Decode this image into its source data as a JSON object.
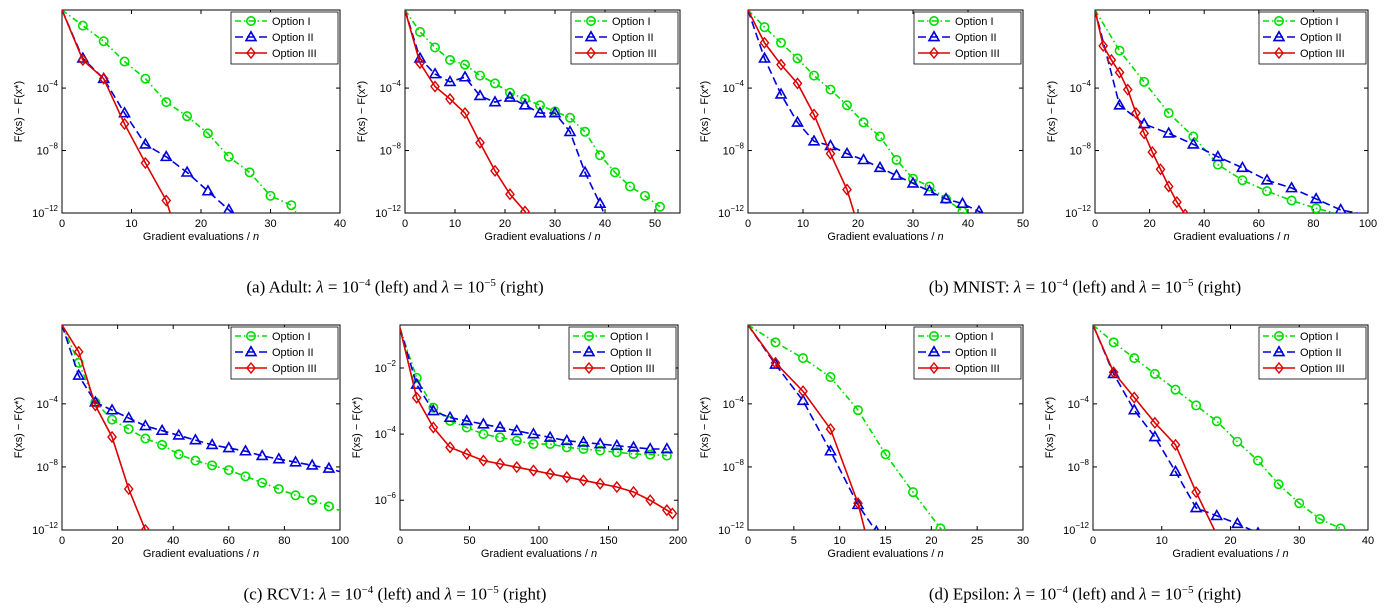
{
  "colors": {
    "option1": "#00dd00",
    "option2": "#0000dd",
    "option3": "#dd0000",
    "axis": "#000000"
  },
  "captions": [
    {
      "label": "(a) Adult:",
      "lam": "λ",
      "eq": " = 10",
      "exp1": "−4",
      "mid": " (left) and ",
      "exp2": "−5",
      "end": " (right)"
    },
    {
      "label": "(b) MNIST:",
      "lam": "λ",
      "eq": " = 10",
      "exp1": "−4",
      "mid": " (left) and ",
      "exp2": "−5",
      "end": " (right)"
    },
    {
      "label": "(c) RCV1:",
      "lam": "λ",
      "eq": " = 10",
      "exp1": "−4",
      "mid": " (left) and ",
      "exp2": "−5",
      "end": " (right)"
    },
    {
      "label": "(d) Epsilon:",
      "lam": "λ",
      "eq": " = 10",
      "exp1": "−4",
      "mid": " (left) and ",
      "exp2": "−5",
      "end": " (right)"
    }
  ],
  "chart_data": [
    {
      "type": "line",
      "xlabel": "Gradient evaluations / n",
      "ylabel": "F(x^s) − F(x^*)",
      "yscale": "log",
      "xlim": [
        0,
        40
      ],
      "xticks": [
        0,
        10,
        20,
        30,
        40
      ],
      "ylim_exp": [
        -12,
        1
      ],
      "ytick_exp": [
        -4,
        -8,
        -12
      ],
      "legend": [
        "Option I",
        "Option II",
        "Option III"
      ],
      "series": [
        {
          "name": "Option I",
          "x": [
            0,
            3,
            6,
            9,
            12,
            15,
            18,
            21,
            24,
            27,
            30,
            33,
            34
          ],
          "y_exp": [
            1,
            0,
            -1,
            -2.3,
            -3.4,
            -4.9,
            -5.8,
            -6.9,
            -8.4,
            -9.4,
            -10.9,
            -11.5,
            -12.2
          ]
        },
        {
          "name": "Option II",
          "x": [
            0,
            3,
            6,
            9,
            12,
            15,
            18,
            21,
            24,
            26
          ],
          "y_exp": [
            1,
            -2.1,
            -3.4,
            -5.6,
            -7.6,
            -8.4,
            -9.4,
            -10.6,
            -11.8,
            -12.6
          ]
        },
        {
          "name": "Option III",
          "x": [
            0,
            3,
            6,
            9,
            12,
            15,
            16
          ],
          "y_exp": [
            1,
            -2.2,
            -3.4,
            -6.3,
            -8.8,
            -11.2,
            -12.6
          ]
        }
      ]
    },
    {
      "type": "line",
      "xlabel": "Gradient evaluations / n",
      "ylabel": "F(x^s) − F(x^*)",
      "yscale": "log",
      "xlim": [
        0,
        55
      ],
      "xticks": [
        0,
        10,
        20,
        30,
        40,
        50
      ],
      "ylim_exp": [
        -12,
        1
      ],
      "ytick_exp": [
        -4,
        -8,
        -12
      ],
      "legend": [
        "Option I",
        "Option II",
        "Option III"
      ],
      "series": [
        {
          "name": "Option I",
          "x": [
            0,
            3,
            6,
            9,
            12,
            15,
            18,
            21,
            24,
            27,
            30,
            33,
            36,
            39,
            42,
            45,
            48,
            51
          ],
          "y_exp": [
            1,
            -0.4,
            -1.4,
            -2.2,
            -2.5,
            -3.2,
            -3.7,
            -4.3,
            -4.7,
            -5.1,
            -5.5,
            -5.9,
            -6.8,
            -8.3,
            -9.4,
            -10.3,
            -10.9,
            -11.6
          ]
        },
        {
          "name": "Option II",
          "x": [
            0,
            3,
            6,
            9,
            12,
            15,
            18,
            21,
            24,
            27,
            30,
            33,
            36,
            39,
            40
          ],
          "y_exp": [
            1,
            -2.1,
            -3.1,
            -3.6,
            -3.3,
            -4.5,
            -4.9,
            -4.6,
            -5.1,
            -5.6,
            -5.6,
            -6.8,
            -9.4,
            -11.4,
            -12.2
          ]
        },
        {
          "name": "Option III",
          "x": [
            0,
            3,
            6,
            9,
            12,
            15,
            18,
            21,
            24,
            25
          ],
          "y_exp": [
            1,
            -2.4,
            -3.9,
            -4.7,
            -5.6,
            -7.5,
            -9.3,
            -10.8,
            -11.9,
            -12.5
          ]
        }
      ]
    },
    {
      "type": "line",
      "xlabel": "Gradient evaluations / n",
      "ylabel": "F(x^s) − F(x^*)",
      "yscale": "log",
      "xlim": [
        0,
        50
      ],
      "xticks": [
        0,
        10,
        20,
        30,
        40,
        50
      ],
      "ylim_exp": [
        -12,
        1
      ],
      "ytick_exp": [
        -4,
        -8,
        -12
      ],
      "legend": [
        "Option I",
        "Option II",
        "Option III"
      ],
      "series": [
        {
          "name": "Option I",
          "x": [
            0,
            3,
            6,
            9,
            12,
            15,
            18,
            21,
            24,
            27,
            30,
            33,
            36,
            39,
            41
          ],
          "y_exp": [
            1,
            -0.1,
            -1.1,
            -2.1,
            -3.2,
            -4.1,
            -5.1,
            -6.2,
            -7.1,
            -8.6,
            -9.8,
            -10.3,
            -11.1,
            -11.9,
            -12.5
          ]
        },
        {
          "name": "Option II",
          "x": [
            0,
            3,
            6,
            9,
            12,
            15,
            18,
            21,
            24,
            27,
            30,
            33,
            36,
            39,
            42,
            45,
            48
          ],
          "y_exp": [
            1,
            -2.1,
            -4.4,
            -6.2,
            -7.4,
            -7.7,
            -8.2,
            -8.6,
            -9.1,
            -9.6,
            -10.1,
            -10.6,
            -11.1,
            -11.4,
            -11.9,
            -12.4,
            -12.8
          ]
        },
        {
          "name": "Option III",
          "x": [
            0,
            3,
            6,
            9,
            12,
            15,
            18,
            20
          ],
          "y_exp": [
            1,
            -1.1,
            -2.5,
            -3.7,
            -5.7,
            -8.2,
            -10.5,
            -12.8
          ]
        }
      ]
    },
    {
      "type": "line",
      "xlabel": "Gradient evaluations / n",
      "ylabel": "F(x^s) − F(x^*)",
      "yscale": "log",
      "xlim": [
        0,
        100
      ],
      "xticks": [
        0,
        20,
        40,
        60,
        80,
        100
      ],
      "ylim_exp": [
        -12,
        1
      ],
      "ytick_exp": [
        -4,
        -8,
        -12
      ],
      "legend": [
        "Option I",
        "Option II",
        "Option III"
      ],
      "series": [
        {
          "name": "Option I",
          "x": [
            0,
            9,
            18,
            27,
            36,
            45,
            54,
            63,
            72,
            81,
            90
          ],
          "y_exp": [
            1,
            -1.6,
            -3.6,
            -5.6,
            -7.1,
            -8.9,
            -9.9,
            -10.6,
            -11.2,
            -11.7,
            -12.1
          ]
        },
        {
          "name": "Option II",
          "x": [
            0,
            9,
            18,
            27,
            36,
            45,
            54,
            63,
            72,
            81,
            90,
            99
          ],
          "y_exp": [
            1,
            -5.1,
            -6.3,
            -6.9,
            -7.6,
            -8.4,
            -9.1,
            -9.9,
            -10.4,
            -11.1,
            -11.8,
            -12.1
          ]
        },
        {
          "name": "Option III",
          "x": [
            0,
            3,
            6,
            9,
            12,
            15,
            18,
            21,
            24,
            27,
            30,
            33,
            36
          ],
          "y_exp": [
            1,
            -1.3,
            -2.2,
            -3.0,
            -4.1,
            -5.6,
            -6.9,
            -8.1,
            -9.2,
            -10.3,
            -11.3,
            -12.1,
            -12.9
          ]
        }
      ]
    },
    {
      "type": "line",
      "xlabel": "Gradient evaluations / n",
      "ylabel": "F(x^s) − F(x^*)",
      "yscale": "log",
      "xlim": [
        0,
        100
      ],
      "xticks": [
        0,
        20,
        40,
        60,
        80,
        100
      ],
      "ylim_exp": [
        -12,
        1
      ],
      "ytick_exp": [
        -4,
        -8,
        -12
      ],
      "legend": [
        "Option I",
        "Option II",
        "Option III"
      ],
      "series": [
        {
          "name": "Option I",
          "x": [
            0,
            6,
            12,
            18,
            24,
            30,
            36,
            42,
            48,
            54,
            60,
            66,
            72,
            78,
            84,
            90,
            96,
            102
          ],
          "y_exp": [
            1,
            -1.4,
            -3.9,
            -5.0,
            -5.6,
            -6.2,
            -6.6,
            -7.2,
            -7.6,
            -7.9,
            -8.2,
            -8.6,
            -9.0,
            -9.4,
            -9.8,
            -10.1,
            -10.5,
            -10.9
          ]
        },
        {
          "name": "Option II",
          "x": [
            0,
            6,
            12,
            18,
            24,
            30,
            36,
            42,
            48,
            54,
            60,
            66,
            72,
            78,
            84,
            90,
            96,
            102
          ],
          "y_exp": [
            1,
            -2.2,
            -3.9,
            -4.4,
            -4.9,
            -5.4,
            -5.7,
            -6.0,
            -6.3,
            -6.6,
            -6.8,
            -7.0,
            -7.3,
            -7.5,
            -7.7,
            -7.9,
            -8.1,
            -8.4
          ]
        },
        {
          "name": "Option III",
          "x": [
            0,
            6,
            12,
            18,
            24,
            30,
            32
          ],
          "y_exp": [
            1,
            -0.7,
            -4.1,
            -6.1,
            -9.4,
            -12.0,
            -12.8
          ]
        }
      ]
    },
    {
      "type": "line",
      "xlabel": "Gradient evaluations / n",
      "ylabel": "F(x^s) − F(x^*)",
      "yscale": "log",
      "xlim": [
        0,
        200
      ],
      "xticks": [
        0,
        50,
        100,
        150,
        200
      ],
      "ylim_exp": [
        -6.9,
        -0.7
      ],
      "ytick_exp": [
        -2,
        -4,
        -6
      ],
      "legend": [
        "Option I",
        "Option II",
        "Option III"
      ],
      "series": [
        {
          "name": "Option I",
          "x": [
            0,
            12,
            24,
            36,
            48,
            60,
            72,
            84,
            96,
            108,
            120,
            132,
            144,
            156,
            168,
            180,
            192
          ],
          "y_exp": [
            -0.8,
            -2.3,
            -3.2,
            -3.6,
            -3.8,
            -4.0,
            -4.1,
            -4.2,
            -4.3,
            -4.3,
            -4.4,
            -4.45,
            -4.5,
            -4.55,
            -4.6,
            -4.62,
            -4.65
          ]
        },
        {
          "name": "Option II",
          "x": [
            0,
            12,
            24,
            36,
            48,
            60,
            72,
            84,
            96,
            108,
            120,
            132,
            144,
            156,
            168,
            180,
            192
          ],
          "y_exp": [
            -0.8,
            -2.5,
            -3.3,
            -3.5,
            -3.6,
            -3.7,
            -3.8,
            -3.9,
            -4.0,
            -4.1,
            -4.2,
            -4.25,
            -4.3,
            -4.35,
            -4.4,
            -4.45,
            -4.45
          ]
        },
        {
          "name": "Option III",
          "x": [
            0,
            12,
            24,
            36,
            48,
            60,
            72,
            84,
            96,
            108,
            120,
            132,
            144,
            156,
            168,
            180,
            192,
            196
          ],
          "y_exp": [
            -0.8,
            -2.9,
            -3.8,
            -4.4,
            -4.6,
            -4.8,
            -4.9,
            -5.0,
            -5.1,
            -5.2,
            -5.3,
            -5.4,
            -5.5,
            -5.6,
            -5.75,
            -6.0,
            -6.3,
            -6.4
          ]
        }
      ]
    },
    {
      "type": "line",
      "xlabel": "Gradient evaluations / n",
      "ylabel": "F(x^s) − F(x^*)",
      "yscale": "log",
      "xlim": [
        0,
        30
      ],
      "xticks": [
        0,
        5,
        10,
        15,
        20,
        25,
        30
      ],
      "ylim_exp": [
        -12,
        1
      ],
      "ytick_exp": [
        -4,
        -8,
        -12
      ],
      "legend": [
        "Option I",
        "Option II",
        "Option III"
      ],
      "series": [
        {
          "name": "Option I",
          "x": [
            0,
            3,
            6,
            9,
            12,
            15,
            18,
            21,
            22
          ],
          "y_exp": [
            1,
            -0.1,
            -1.1,
            -2.3,
            -4.4,
            -7.2,
            -9.6,
            -11.9,
            -12.6
          ]
        },
        {
          "name": "Option II",
          "x": [
            0,
            3,
            6,
            9,
            12,
            14,
            15
          ],
          "y_exp": [
            1,
            -1.5,
            -3.8,
            -7.0,
            -10.4,
            -12.1,
            -12.6
          ]
        },
        {
          "name": "Option III",
          "x": [
            0,
            3,
            6,
            9,
            12,
            13
          ],
          "y_exp": [
            1,
            -1.4,
            -3.2,
            -5.6,
            -10.3,
            -12.6
          ]
        }
      ]
    },
    {
      "type": "line",
      "xlabel": "Gradient evaluations / n",
      "ylabel": "F(x^s) − F(x^*)",
      "yscale": "log",
      "xlim": [
        0,
        40
      ],
      "xticks": [
        0,
        10,
        20,
        30,
        40
      ],
      "ylim_exp": [
        -12,
        1
      ],
      "ytick_exp": [
        -4,
        -8,
        -12
      ],
      "legend": [
        "Option I",
        "Option II",
        "Option III"
      ],
      "series": [
        {
          "name": "Option I",
          "x": [
            0,
            3,
            6,
            9,
            12,
            15,
            18,
            21,
            24,
            27,
            30,
            33,
            36
          ],
          "y_exp": [
            1,
            -0.1,
            -1.1,
            -2.1,
            -3.1,
            -4.1,
            -5.1,
            -6.4,
            -7.6,
            -9.1,
            -10.3,
            -11.3,
            -11.9
          ]
        },
        {
          "name": "Option II",
          "x": [
            0,
            3,
            6,
            9,
            12,
            15,
            18,
            21,
            24,
            27
          ],
          "y_exp": [
            1,
            -2.1,
            -4.4,
            -6.1,
            -8.3,
            -10.6,
            -11.1,
            -11.6,
            -12.2,
            -12.8
          ]
        },
        {
          "name": "Option III",
          "x": [
            0,
            3,
            6,
            9,
            12,
            15,
            18
          ],
          "y_exp": [
            1,
            -2.0,
            -3.6,
            -5.2,
            -6.6,
            -9.6,
            -12.3
          ]
        }
      ]
    }
  ]
}
